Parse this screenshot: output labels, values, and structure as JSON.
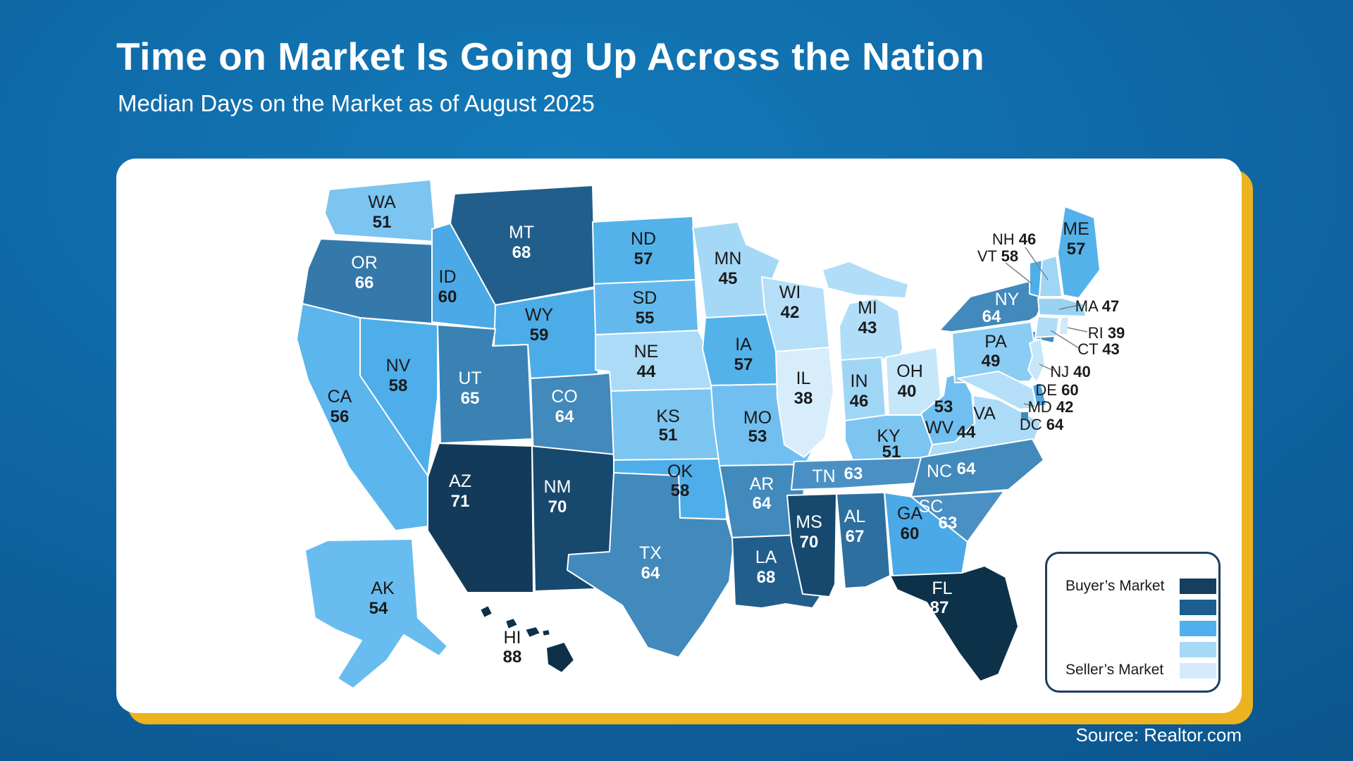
{
  "title": "Time on Market Is Going Up Across the Nation",
  "subtitle": "Median Days on the Market as of August 2025",
  "source": "Source: Realtor.com",
  "colors": {
    "background_center": "#137ab9",
    "background_edge": "#09497d",
    "card_background": "#ffffff",
    "card_shadow_gold": "#edb220",
    "state_border": "#ffffff",
    "callout_line": "#808080",
    "label_dark": "#1a1a1a",
    "label_light": "#ffffff",
    "legend_border": "#1c3f5e"
  },
  "legend": {
    "top_label": "Buyer’s Market",
    "bottom_label": "Seller’s Market",
    "swatches": [
      "#143f5f",
      "#1b5e8f",
      "#4fb0ed",
      "#a6d9f7",
      "#d4ebfc"
    ]
  },
  "chart_data": {
    "type": "heatmap",
    "subtype": "us-choropleth-map",
    "title": "Time on Market Is Going Up Across the Nation",
    "subtitle": "Median Days on the Market as of August 2025",
    "unit": "median days on market",
    "value_range": [
      38,
      88
    ],
    "legend": {
      "high": "Buyer’s Market",
      "low": "Seller’s Market"
    },
    "states": [
      {
        "abbr": "WA",
        "value": 51
      },
      {
        "abbr": "OR",
        "value": 66
      },
      {
        "abbr": "CA",
        "value": 56
      },
      {
        "abbr": "NV",
        "value": 58
      },
      {
        "abbr": "ID",
        "value": 60
      },
      {
        "abbr": "MT",
        "value": 68
      },
      {
        "abbr": "WY",
        "value": 59
      },
      {
        "abbr": "UT",
        "value": 65
      },
      {
        "abbr": "CO",
        "value": 64
      },
      {
        "abbr": "AZ",
        "value": 71
      },
      {
        "abbr": "NM",
        "value": 70
      },
      {
        "abbr": "ND",
        "value": 57
      },
      {
        "abbr": "SD",
        "value": 55
      },
      {
        "abbr": "NE",
        "value": 44
      },
      {
        "abbr": "KS",
        "value": 51
      },
      {
        "abbr": "OK",
        "value": 58
      },
      {
        "abbr": "TX",
        "value": 64
      },
      {
        "abbr": "MN",
        "value": 45
      },
      {
        "abbr": "IA",
        "value": 57
      },
      {
        "abbr": "MO",
        "value": 53
      },
      {
        "abbr": "AR",
        "value": 64
      },
      {
        "abbr": "LA",
        "value": 68
      },
      {
        "abbr": "WI",
        "value": 42
      },
      {
        "abbr": "IL",
        "value": 38
      },
      {
        "abbr": "MS",
        "value": 70
      },
      {
        "abbr": "MI",
        "value": 43
      },
      {
        "abbr": "IN",
        "value": 46
      },
      {
        "abbr": "OH",
        "value": 40
      },
      {
        "abbr": "KY",
        "value": 51
      },
      {
        "abbr": "TN",
        "value": 63
      },
      {
        "abbr": "WV",
        "value": 53
      },
      {
        "abbr": "VA",
        "value": 44
      },
      {
        "abbr": "NC",
        "value": 64
      },
      {
        "abbr": "SC",
        "value": 63
      },
      {
        "abbr": "GA",
        "value": 60
      },
      {
        "abbr": "AL",
        "value": 67
      },
      {
        "abbr": "FL",
        "value": 87
      },
      {
        "abbr": "NY",
        "value": 64
      },
      {
        "abbr": "PA",
        "value": 49
      },
      {
        "abbr": "ME",
        "value": 57
      },
      {
        "abbr": "NH",
        "value": 46
      },
      {
        "abbr": "VT",
        "value": 58
      },
      {
        "abbr": "MA",
        "value": 47
      },
      {
        "abbr": "RI",
        "value": 39
      },
      {
        "abbr": "CT",
        "value": 43
      },
      {
        "abbr": "NJ",
        "value": 40
      },
      {
        "abbr": "DE",
        "value": 60
      },
      {
        "abbr": "MD",
        "value": 42
      },
      {
        "abbr": "DC",
        "value": 64
      },
      {
        "abbr": "AK",
        "value": 54
      },
      {
        "abbr": "HI",
        "value": 88
      }
    ]
  }
}
